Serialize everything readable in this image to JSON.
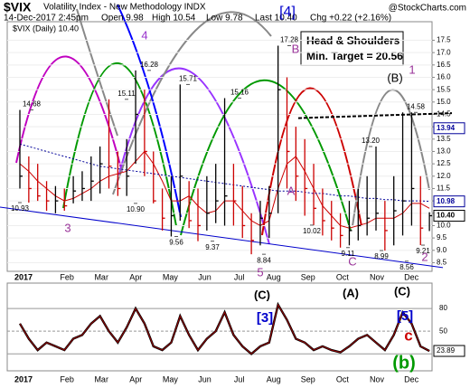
{
  "chart_data": {
    "type": "ohlc",
    "header": {
      "symbol": "$VIX",
      "name": "Volatility Index - New Methodology INDX",
      "date": "14-Dec-2017 2:45pm",
      "open": "Open 9.98",
      "high": "High 10.54",
      "low": "Low 9.78",
      "last": "Last 10.40",
      "change": "Chg +0.22 (+2.16%)",
      "legend": "$VIX (Daily) 10.40",
      "watermark": "@StockCharts.com"
    },
    "months": [
      "2017",
      "Feb",
      "Mar",
      "Apr",
      "May",
      "Jun",
      "Jul",
      "Aug",
      "Sep",
      "Oct",
      "Nov",
      "Dec"
    ],
    "ylim": [
      8.15,
      18.25
    ],
    "yticks": [
      {
        "value": 8.5,
        "label": "8.5"
      },
      {
        "value": 9,
        "label": "9.0"
      },
      {
        "value": 9.5,
        "label": "9.5"
      },
      {
        "value": 10,
        "label": "10.0"
      },
      {
        "value": 10.5,
        "label": "10.5"
      },
      {
        "value": 11,
        "label": "11.0"
      },
      {
        "value": 11.5,
        "label": "11.5"
      },
      {
        "value": 12,
        "label": "12.0"
      },
      {
        "value": 12.5,
        "label": "12.5"
      },
      {
        "value": 13,
        "label": "13.0"
      },
      {
        "value": 13.5,
        "label": "13.5"
      },
      {
        "value": 14,
        "label": "14.0"
      },
      {
        "value": 14.5,
        "label": "14.5"
      },
      {
        "value": 15,
        "label": "15.0"
      },
      {
        "value": 15.5,
        "label": "15.5"
      },
      {
        "value": 16,
        "label": "16.0"
      },
      {
        "value": 16.5,
        "label": "16.5"
      },
      {
        "value": 17,
        "label": "17.0"
      },
      {
        "value": 17.5,
        "label": "17.5"
      }
    ],
    "high": [
      14.68,
      12.8,
      12.5,
      11.8,
      11.6,
      11.5,
      12.0,
      12.2,
      12.8,
      13.2,
      15.11,
      13.0,
      13.5,
      16.28,
      15.5,
      13.0,
      11.5,
      12.0,
      15.71,
      11.8,
      11.5,
      12.0,
      12.5,
      15.16,
      12.5,
      11.6,
      10.5,
      11.0,
      11.6,
      17.28,
      16.0,
      14.0,
      13.5,
      12.5,
      11.5,
      11.0,
      10.5,
      11.0,
      11.5,
      12.0,
      13.2,
      11.0,
      12.0,
      14.58,
      14.58,
      12.0,
      10.54
    ],
    "low": [
      11.5,
      10.93,
      11.0,
      10.6,
      10.5,
      10.6,
      10.9,
      11.0,
      11.0,
      11.3,
      11.5,
      11.2,
      11.2,
      12.5,
      12.0,
      10.9,
      9.8,
      9.56,
      10.2,
      9.9,
      9.37,
      9.8,
      10.1,
      10.0,
      10.0,
      9.5,
      8.84,
      9.2,
      9.5,
      10.5,
      11.5,
      11.0,
      10.4,
      10.02,
      9.6,
      9.4,
      9.11,
      9.2,
      9.4,
      9.6,
      9.8,
      8.99,
      9.2,
      9.6,
      10.0,
      9.21,
      9.78
    ],
    "close": [
      12.0,
      11.5,
      11.2,
      11.0,
      11.0,
      10.8,
      11.4,
      11.5,
      11.8,
      12.5,
      12.4,
      11.5,
      12.0,
      14.5,
      13.0,
      11.0,
      10.3,
      10.4,
      12.0,
      10.2,
      10.0,
      10.5,
      11.0,
      11.2,
      11.0,
      10.0,
      9.4,
      10.3,
      10.5,
      15.5,
      13.0,
      12.0,
      11.5,
      10.7,
      10.2,
      9.9,
      9.6,
      9.8,
      10.0,
      10.3,
      10.5,
      9.8,
      10.6,
      11.0,
      11.5,
      9.9,
      10.4
    ],
    "overlays": [
      {
        "color": "#cc0000",
        "dash": false,
        "values": [
          12.5,
          12.2,
          11.8,
          11.5,
          11.2,
          11.0,
          11.1,
          11.3,
          11.5,
          11.8,
          12.0,
          12.1,
          12.2,
          12.6,
          13.0,
          12.5,
          11.8,
          11.0,
          11.0,
          11.2,
          10.8,
          10.5,
          10.6,
          11.0,
          11.0,
          10.6,
          10.2,
          10.0,
          10.2,
          11.5,
          12.5,
          12.8,
          12.2,
          11.5,
          10.8,
          10.4,
          10.0,
          9.9,
          10.0,
          10.1,
          10.3,
          10.3,
          10.3,
          10.5,
          10.9,
          10.9,
          10.7
        ]
      },
      {
        "color": "#000099",
        "dash": true,
        "values": [
          13.3,
          13.2,
          13.1,
          13.0,
          12.9,
          12.8,
          12.7,
          12.6,
          12.5,
          12.4,
          12.35,
          12.3,
          12.25,
          12.2,
          12.15,
          12.1,
          12.05,
          12.0,
          11.95,
          11.9,
          11.85,
          11.8,
          11.75,
          11.7,
          11.65,
          11.6,
          11.55,
          11.5,
          11.45,
          11.4,
          11.4,
          11.4,
          11.35,
          11.3,
          11.3,
          11.25,
          11.2,
          11.2,
          11.15,
          11.1,
          11.1,
          11.05,
          11.05,
          11.0,
          11.0,
          11.0,
          10.98
        ]
      }
    ],
    "trendline": [
      10.75,
      8.3
    ],
    "neckline": [
      14.35,
      14.55
    ],
    "price_boxes": [
      {
        "value": 13.94,
        "label": "13.94"
      },
      {
        "value": 10.98,
        "label": "10.98"
      },
      {
        "value": 10.4,
        "label": "10.40"
      }
    ],
    "price_labels": [
      {
        "value": 14.68,
        "label": "14.68"
      },
      {
        "value": 10.93,
        "label": "10.93"
      },
      {
        "value": 15.11,
        "label": "15.11"
      },
      {
        "value": 16.28,
        "label": "16.28"
      },
      {
        "value": 10.9,
        "label": "10.90"
      },
      {
        "value": 15.71,
        "label": "15.71"
      },
      {
        "value": 15.16,
        "label": "15.16"
      },
      {
        "value": 9.56,
        "label": "9.56"
      },
      {
        "value": 9.37,
        "label": "9.37"
      },
      {
        "value": 8.84,
        "label": "8.84"
      },
      {
        "value": 17.28,
        "label": "17.28"
      },
      {
        "value": 10.02,
        "label": "10.02"
      },
      {
        "value": 9.11,
        "label": "9.11"
      },
      {
        "value": 13.2,
        "label": "13.20"
      },
      {
        "value": 8.99,
        "label": "8.99"
      },
      {
        "value": 14.58,
        "label": "14.58"
      },
      {
        "value": 8.56,
        "label": "8.56"
      },
      {
        "value": 9.21,
        "label": "9.21"
      }
    ],
    "waves": [
      "[4]",
      "4",
      "3",
      "5",
      "B",
      "A",
      "C",
      "(B)",
      "1",
      "2"
    ],
    "note": [
      "Head & Shoulders",
      "Min. Target = 20.56"
    ],
    "oscillator": {
      "ylim": [
        0,
        110
      ],
      "yticks": [
        20,
        50,
        80
      ],
      "color": "#990000",
      "values": [
        60,
        40,
        25,
        35,
        30,
        25,
        40,
        45,
        60,
        70,
        50,
        35,
        55,
        80,
        60,
        30,
        25,
        35,
        70,
        45,
        25,
        40,
        50,
        75,
        45,
        30,
        20,
        30,
        35,
        85,
        65,
        40,
        35,
        25,
        30,
        25,
        22,
        30,
        40,
        45,
        35,
        25,
        45,
        75,
        60,
        30,
        23.89
      ],
      "last": 23.89,
      "waves": [
        "(C)",
        "(A)",
        "(C)",
        "[3]",
        "[5]",
        "c",
        "(b)"
      ]
    }
  }
}
